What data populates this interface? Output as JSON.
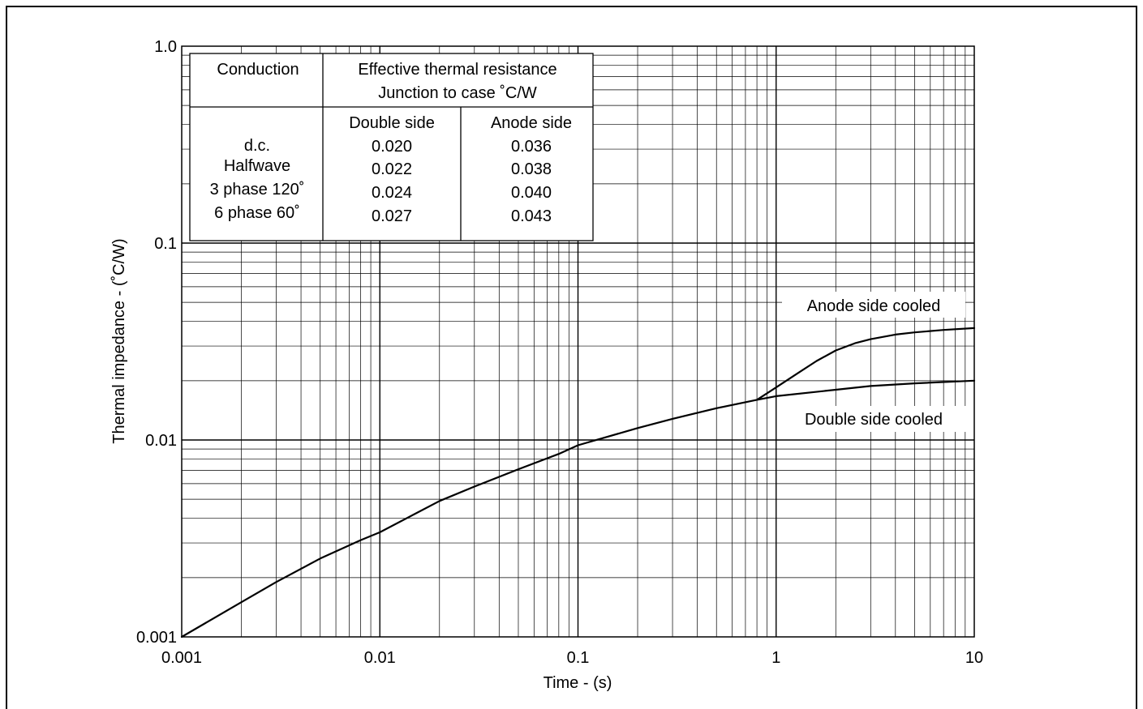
{
  "chart_data": {
    "type": "line",
    "title": "",
    "xlabel": "Time - (s)",
    "ylabel": "Thermal impedance - (˚C/W)",
    "x_scale": "log",
    "y_scale": "log",
    "xlim": [
      0.001,
      10
    ],
    "ylim": [
      0.001,
      1.0
    ],
    "x_ticks": [
      {
        "value": 0.001,
        "label": "0.001"
      },
      {
        "value": 0.01,
        "label": "0.01"
      },
      {
        "value": 0.1,
        "label": "0.1"
      },
      {
        "value": 1,
        "label": "1"
      },
      {
        "value": 10,
        "label": "10"
      }
    ],
    "y_ticks": [
      {
        "value": 0.001,
        "label": "0.001"
      },
      {
        "value": 0.01,
        "label": "0.01"
      },
      {
        "value": 0.1,
        "label": "0.1"
      },
      {
        "value": 1.0,
        "label": "1.0"
      }
    ],
    "grid": true,
    "series": [
      {
        "name": "Double side cooled",
        "x": [
          0.001,
          0.002,
          0.003,
          0.005,
          0.008,
          0.01,
          0.02,
          0.03,
          0.05,
          0.08,
          0.1,
          0.2,
          0.3,
          0.5,
          0.8,
          1,
          2,
          3,
          5,
          10
        ],
        "y": [
          0.001,
          0.0015,
          0.0019,
          0.0025,
          0.0031,
          0.0034,
          0.0049,
          0.0058,
          0.0071,
          0.0085,
          0.0094,
          0.0115,
          0.0128,
          0.0145,
          0.016,
          0.0167,
          0.018,
          0.0188,
          0.0194,
          0.02
        ]
      },
      {
        "name": "Anode side cooled",
        "x": [
          0.8,
          1,
          1.3,
          1.6,
          2,
          2.5,
          3,
          4,
          5,
          7,
          10
        ],
        "y": [
          0.016,
          0.0185,
          0.022,
          0.0252,
          0.0285,
          0.031,
          0.0325,
          0.0343,
          0.0352,
          0.0362,
          0.037
        ]
      }
    ],
    "annotations": [
      {
        "text": "Anode side cooled"
      },
      {
        "text": "Double side cooled"
      }
    ],
    "inset_table": {
      "header_col1": "Conduction",
      "header_col2_line1": "Effective thermal resistance",
      "header_col2_line2": "Junction to case ˚C/W",
      "subheader_double": "Double side",
      "subheader_anode": "Anode side",
      "rows": [
        {
          "conduction": "d.c.",
          "double": "0.020",
          "anode": "0.036"
        },
        {
          "conduction": "Halfwave",
          "double": "0.022",
          "anode": "0.038"
        },
        {
          "conduction": "3 phase 120˚",
          "double": "0.024",
          "anode": "0.040"
        },
        {
          "conduction": "6 phase 60˚",
          "double": "0.027",
          "anode": "0.043"
        }
      ]
    }
  }
}
